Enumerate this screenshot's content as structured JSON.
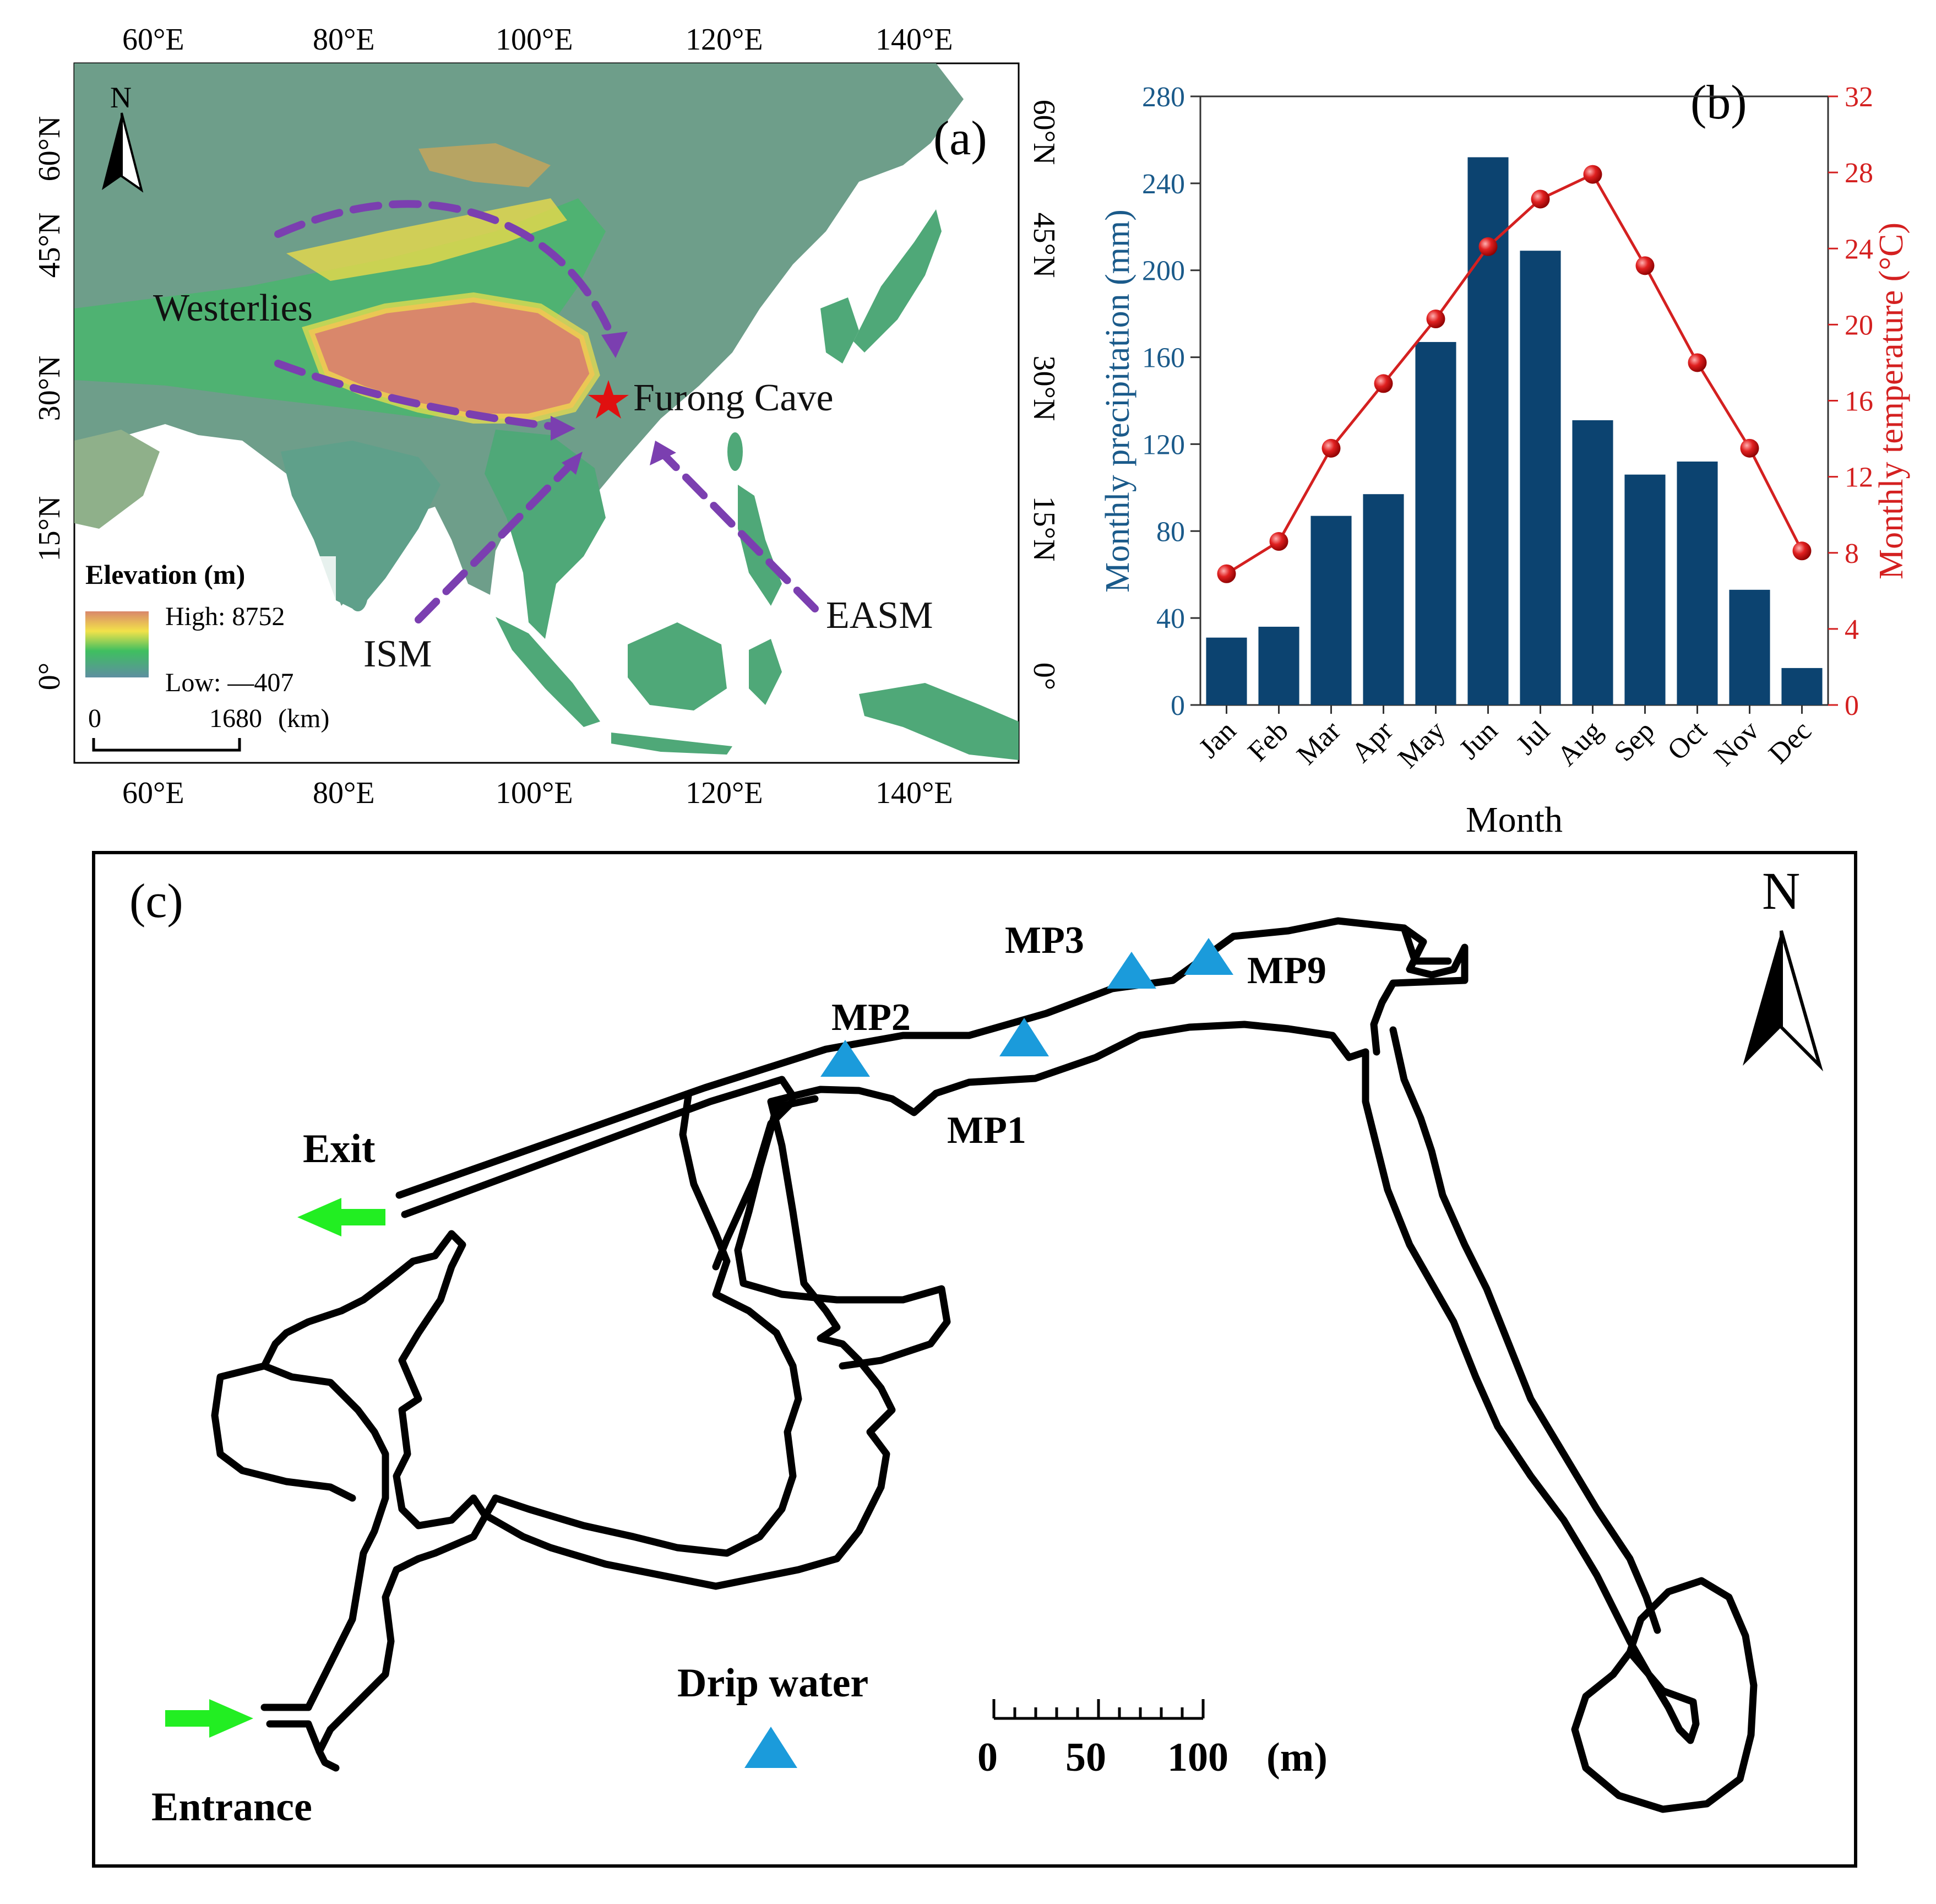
{
  "panel_a": {
    "label": "(a)",
    "north": "N",
    "lon_labels": [
      "60°E",
      "80°E",
      "100°E",
      "120°E",
      "140°E"
    ],
    "lat_labels": [
      "60°N",
      "45°N",
      "30°N",
      "15°N",
      "0°"
    ],
    "westerlies": "Westerlies",
    "site": "Furong Cave",
    "ism": "ISM",
    "easm": "EASM",
    "legend": {
      "title": "Elevation (m)",
      "high": "High: 8752",
      "low": "Low: —407",
      "scale_zero": "0",
      "scale_max": "1680",
      "scale_unit": "(km)"
    },
    "colors": {
      "arrow": "#7B3FB0",
      "star": "#E01010",
      "ocean": "#FFFFFF",
      "low": "#5E8FA0",
      "mid": "#3FBF60",
      "high_mid": "#F2E24A",
      "high": "#D9876B"
    }
  },
  "panel_b": {
    "label": "(b)",
    "colors": {
      "bar": "#0C4370",
      "line": "#D42020",
      "axis_left": "#1A5A8A",
      "axis_right": "#D42020"
    }
  },
  "chart_data": {
    "type": "bar",
    "xlabel": "Month",
    "categories": [
      "Jan",
      "Feb",
      "Mar",
      "Apr",
      "May",
      "Jun",
      "Jul",
      "Aug",
      "Sep",
      "Oct",
      "Nov",
      "Dec"
    ],
    "series": [
      {
        "name": "Monthly precipitation (mm)",
        "type": "bar",
        "axis": "left",
        "values": [
          31,
          36,
          87,
          97,
          167,
          252,
          209,
          131,
          106,
          112,
          53,
          17
        ]
      },
      {
        "name": "Monthly temperature (°C)",
        "type": "line",
        "axis": "right",
        "values": [
          6.9,
          8.6,
          13.5,
          16.9,
          20.3,
          24.1,
          26.6,
          27.9,
          23.1,
          18.0,
          13.5,
          8.1
        ]
      }
    ],
    "ylabel": "Monthly precipitation (mm)",
    "ylim": [
      0,
      280
    ],
    "yticks": [
      0,
      40,
      80,
      120,
      160,
      200,
      240,
      280
    ],
    "y2label": "Monthly temperature (°C)",
    "y2lim": [
      0,
      32
    ],
    "y2ticks": [
      0,
      4,
      8,
      12,
      16,
      20,
      24,
      28,
      32
    ],
    "grid": false
  },
  "panel_c": {
    "label": "(c)",
    "north": "N",
    "exit": "Exit",
    "entrance": "Entrance",
    "sites": [
      "MP3",
      "MP9",
      "MP2",
      "MP1"
    ],
    "legend_label": "Drip water",
    "scale_labels": [
      "0",
      "50",
      "100"
    ],
    "scale_unit": "(m)",
    "colors": {
      "triangle": "#1B9BDB",
      "arrow": "#22EE22",
      "passage": "#000000"
    }
  }
}
